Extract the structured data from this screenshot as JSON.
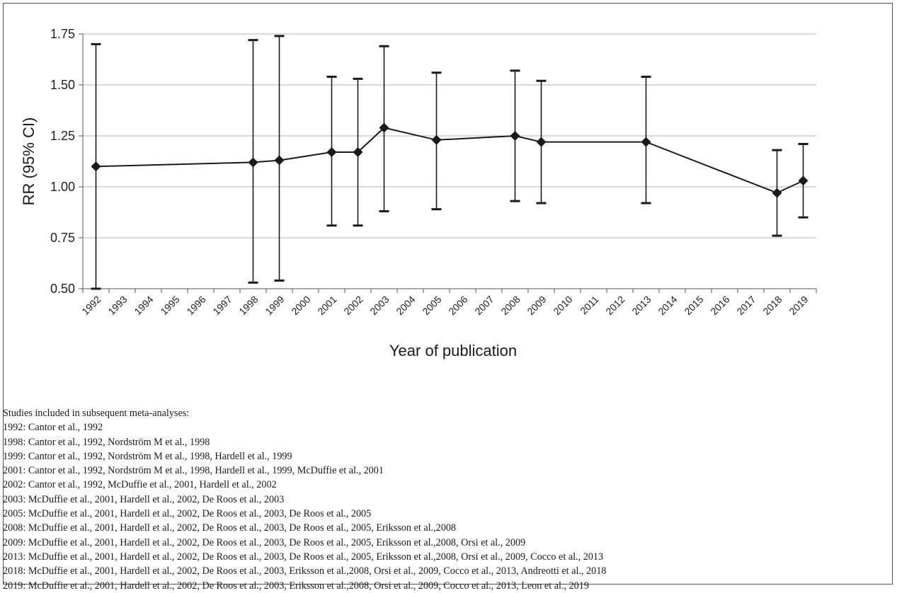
{
  "chart_data": {
    "type": "line",
    "title": "",
    "xlabel": "Year of publication",
    "ylabel": "RR (95% CI)",
    "ylim": [
      0.5,
      1.75
    ],
    "yticks": [
      "0.50",
      "0.75",
      "1.00",
      "1.25",
      "1.50",
      "1.75"
    ],
    "grid": "horizontal",
    "categories": [
      "1992",
      "1993",
      "1994",
      "1995",
      "1996",
      "1997",
      "1998",
      "1999",
      "2000",
      "2001",
      "2002",
      "2003",
      "2004",
      "2005",
      "2006",
      "2007",
      "2008",
      "2009",
      "2010",
      "2011",
      "2012",
      "2013",
      "2014",
      "2015",
      "2016",
      "2017",
      "2018",
      "2019"
    ],
    "series": [
      {
        "marker": "diamond",
        "color": "#1a1a1a",
        "points": [
          {
            "x": "1992",
            "y": 1.1,
            "lower": 0.5,
            "upper": 1.7
          },
          {
            "x": "1998",
            "y": 1.12,
            "lower": 0.53,
            "upper": 1.72
          },
          {
            "x": "1999",
            "y": 1.13,
            "lower": 0.54,
            "upper": 1.74
          },
          {
            "x": "2001",
            "y": 1.17,
            "lower": 0.81,
            "upper": 1.54
          },
          {
            "x": "2002",
            "y": 1.17,
            "lower": 0.81,
            "upper": 1.53
          },
          {
            "x": "2003",
            "y": 1.29,
            "lower": 0.88,
            "upper": 1.69
          },
          {
            "x": "2005",
            "y": 1.23,
            "lower": 0.89,
            "upper": 1.56
          },
          {
            "x": "2008",
            "y": 1.25,
            "lower": 0.93,
            "upper": 1.57
          },
          {
            "x": "2009",
            "y": 1.22,
            "lower": 0.92,
            "upper": 1.52
          },
          {
            "x": "2013",
            "y": 1.22,
            "lower": 0.92,
            "upper": 1.54
          },
          {
            "x": "2018",
            "y": 0.97,
            "lower": 0.76,
            "upper": 1.18
          },
          {
            "x": "2019",
            "y": 1.03,
            "lower": 0.85,
            "upper": 1.21
          }
        ]
      }
    ]
  },
  "notes": {
    "heading": "Studies included in subsequent meta-analyses:",
    "lines": [
      "1992: Cantor et al., 1992",
      "1998: Cantor et al., 1992, Nordström M et al., 1998",
      "1999: Cantor et al., 1992, Nordström M et al., 1998, Hardell et al., 1999",
      "2001: Cantor et al., 1992, Nordström M et al., 1998, Hardell et al., 1999, McDuffie et al., 2001",
      "2002: Cantor et al., 1992, McDuffie et al., 2001, Hardell et al., 2002",
      "2003: McDuffie et al., 2001, Hardell et al., 2002, De Roos et al., 2003",
      "2005: McDuffie et al., 2001, Hardell et al., 2002, De Roos et al., 2003, De Roos et al., 2005",
      "2008: McDuffie et al., 2001, Hardell et al., 2002, De Roos et al., 2003, De Roos et al., 2005, Eriksson et al.,2008",
      "2009: McDuffie et al., 2001, Hardell et al., 2002, De Roos et al., 2003, De Roos et al., 2005, Eriksson et al.,2008, Orsi et al., 2009",
      "2013: McDuffie et al., 2001, Hardell et al., 2002, De Roos et al., 2003, De Roos et al., 2005, Eriksson et al.,2008, Orsi et al., 2009, Cocco et al., 2013",
      "2018: McDuffie et al., 2001, Hardell et al., 2002, De Roos et al., 2003, Eriksson et al.,2008, Orsi et al., 2009, Cocco et al., 2013, Andreotti et al., 2018",
      "2019: McDuffie et al., 2001, Hardell et al., 2002, De Roos et al., 2003, Eriksson et al.,2008, Orsi et al., 2009, Cocco et al., 2013, Leon et al., 2019"
    ]
  }
}
